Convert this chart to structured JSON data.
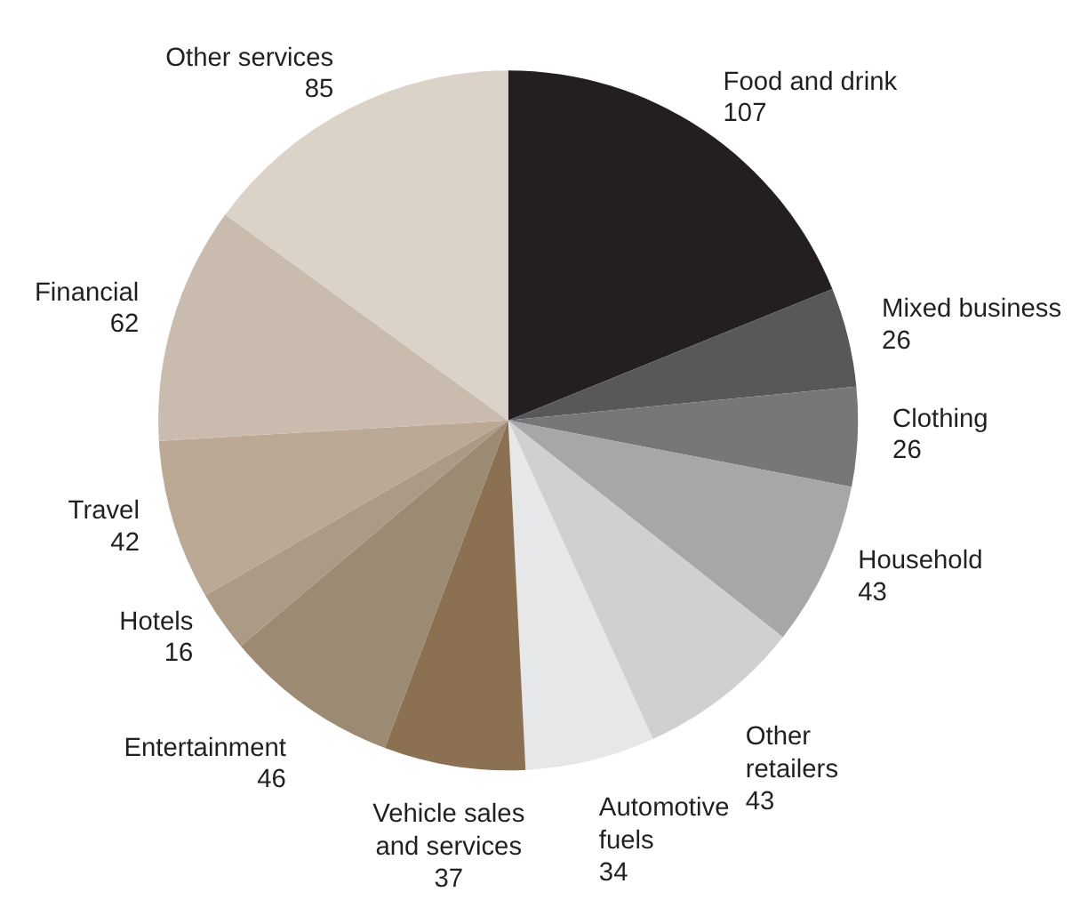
{
  "chart_data": {
    "type": "pie",
    "categories": [
      "Food and drink",
      "Mixed business",
      "Clothing",
      "Household",
      "Other retailers",
      "Automotive fuels",
      "Vehicle sales and services",
      "Entertainment",
      "Hotels",
      "Travel",
      "Financial",
      "Other services"
    ],
    "values": [
      107,
      26,
      26,
      43,
      43,
      34,
      37,
      46,
      16,
      42,
      62,
      85
    ],
    "colors": [
      "#231f20",
      "#58585a",
      "#77777a",
      "#a6a7a9",
      "#cfd0d2",
      "#e6e7e8",
      "#8b7152",
      "#9c8a72",
      "#ab9a86",
      "#bba996",
      "#c9bbad",
      "#dcd3c8"
    ],
    "data_labels": true
  }
}
